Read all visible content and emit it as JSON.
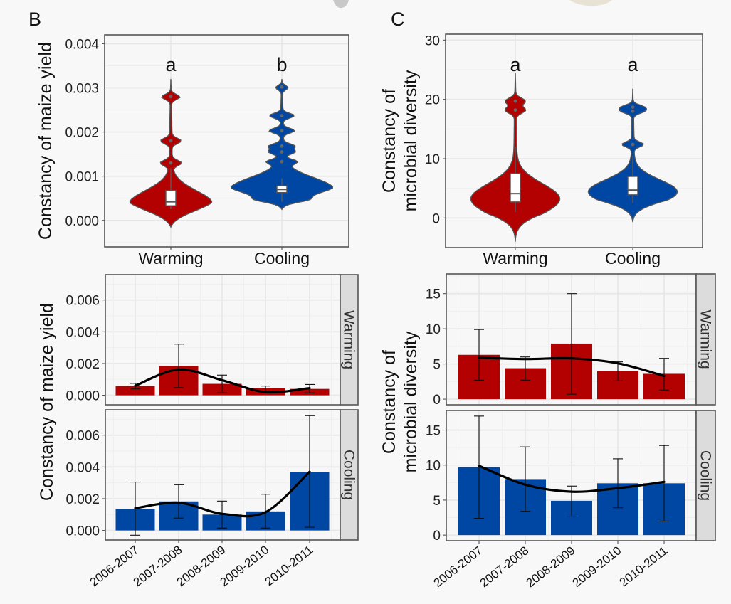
{
  "colors": {
    "warming": "#b30000",
    "cooling": "#0047a3",
    "background": "#f8f8f8",
    "panel_border": "#555555",
    "grid": "#e6e6e6",
    "strip_fill": "#dcdcdc"
  },
  "chart_data": [
    {
      "id": "B-violin",
      "panel_label": "B",
      "type": "violin",
      "ylabel": "Constancy of maize yield",
      "ylim": [
        -0.0006,
        0.0042
      ],
      "yticks": [
        0.0,
        0.001,
        0.002,
        0.003,
        0.004
      ],
      "ytick_labels": [
        "0.000",
        "0.001",
        "0.002",
        "0.003",
        "0.004"
      ],
      "categories": [
        "Warming",
        "Cooling"
      ],
      "significance": [
        "a",
        "b"
      ],
      "grid": true,
      "groups": [
        {
          "name": "Warming",
          "min": -0.00015,
          "max": 0.0032,
          "q1": 0.00033,
          "median": 0.00042,
          "q3": 0.00068,
          "whisker_low": 0.00025,
          "whisker_high": 0.00118,
          "mode": 0.00037,
          "outliers": [
            0.0013,
            0.0018,
            0.0028
          ]
        },
        {
          "name": "Cooling",
          "min": 0.00025,
          "max": 0.0032,
          "q1": 0.00063,
          "median": 0.0007,
          "q3": 0.00078,
          "whisker_low": 0.00042,
          "whisker_high": 0.00095,
          "mode": 0.0007,
          "outliers": [
            0.00133,
            0.00155,
            0.00168,
            0.00203,
            0.00237,
            0.00302
          ]
        }
      ]
    },
    {
      "id": "C-violin",
      "panel_label": "C",
      "type": "violin",
      "ylabel": "Constancy of\nmicrobial diversity",
      "ylim": [
        -5,
        31
      ],
      "yticks": [
        0,
        10,
        20,
        30
      ],
      "ytick_labels": [
        "0",
        "10",
        "20",
        "30"
      ],
      "categories": [
        "Warming",
        "Cooling"
      ],
      "significance": [
        "a",
        "a"
      ],
      "grid": true,
      "groups": [
        {
          "name": "Warming",
          "min": -4,
          "max": 24.5,
          "q1": 2.7,
          "median": 4.1,
          "q3": 7.5,
          "whisker_low": 1.0,
          "whisker_high": 12,
          "mode": 3.2,
          "outliers": [
            18.2,
            19.7
          ]
        },
        {
          "name": "Cooling",
          "min": -0.7,
          "max": 21.8,
          "q1": 3.9,
          "median": 4.7,
          "q3": 7.0,
          "whisker_low": 2.5,
          "whisker_high": 10.5,
          "mode": 4.4,
          "outliers": [
            12.4,
            18.0,
            18.7
          ]
        }
      ]
    },
    {
      "id": "B-bars",
      "type": "bar",
      "ylabel": "Constancy of maize yield",
      "categories": [
        "2006-2007",
        "2007-2008",
        "2008-2009",
        "2009-2010",
        "2010-2011"
      ],
      "ylim": [
        -0.0006,
        0.0076
      ],
      "yticks": [
        0.0,
        0.002,
        0.004,
        0.006
      ],
      "ytick_labels": [
        "0.000",
        "0.002",
        "0.004",
        "0.006"
      ],
      "grid": true,
      "facets": [
        {
          "strip": "Warming",
          "color_key": "warming",
          "values": [
            0.00058,
            0.00185,
            0.00072,
            0.00045,
            0.0004
          ],
          "err_low": [
            0.0004,
            0.00048,
            0.00018,
            0.00025,
            0.00015
          ],
          "err_high": [
            0.00075,
            0.00322,
            0.00127,
            0.00058,
            0.00068
          ],
          "trend": [
            0.0006,
            0.00162,
            0.00095,
            0.0002,
            0.00045
          ]
        },
        {
          "strip": "Cooling",
          "color_key": "cooling",
          "values": [
            0.00135,
            0.00183,
            0.001,
            0.0012,
            0.0037
          ],
          "err_low": [
            -0.0003,
            0.00078,
            0.00015,
            0.00015,
            0.0002
          ],
          "err_high": [
            0.00305,
            0.00288,
            0.00185,
            0.00228,
            0.00723
          ],
          "trend": [
            0.0014,
            0.00175,
            0.00105,
            0.00115,
            0.0037
          ]
        }
      ]
    },
    {
      "id": "C-bars",
      "type": "bar",
      "ylabel": "Constancy of\nmicrobial diversity",
      "categories": [
        "2006-2007",
        "2007-2008",
        "2008-2009",
        "2009-2010",
        "2010-2011"
      ],
      "ylim": [
        -0.8,
        17.8
      ],
      "yticks": [
        0,
        5,
        10,
        15
      ],
      "ytick_labels": [
        "0",
        "5",
        "10",
        "15"
      ],
      "grid": true,
      "facets": [
        {
          "strip": "Warming",
          "color_key": "warming",
          "values": [
            6.3,
            4.4,
            7.9,
            4.0,
            3.6
          ],
          "err_low": [
            2.7,
            2.7,
            0.7,
            2.6,
            1.3
          ],
          "err_high": [
            9.9,
            6.0,
            15.0,
            5.3,
            5.8
          ],
          "trend": [
            5.9,
            5.7,
            5.8,
            5.1,
            3.3
          ]
        },
        {
          "strip": "Cooling",
          "color_key": "cooling",
          "values": [
            9.7,
            8.0,
            4.9,
            7.4,
            7.4
          ],
          "err_low": [
            2.4,
            3.4,
            2.7,
            3.9,
            2.0
          ],
          "err_high": [
            17.0,
            12.6,
            7.0,
            10.9,
            12.8
          ],
          "trend": [
            9.9,
            7.2,
            6.2,
            6.7,
            7.6
          ]
        }
      ]
    }
  ]
}
